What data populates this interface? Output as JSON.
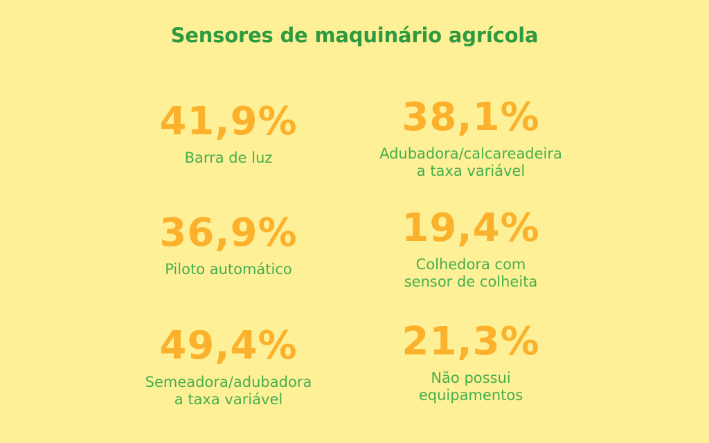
{
  "title": "Sensores de maquinário agrícola",
  "colors": {
    "background": "#FEF097",
    "title": "#2F9A3F",
    "value": "#FBB12C",
    "label": "#45AE4D"
  },
  "stats": [
    {
      "value": "41,9%",
      "label": "Barra de luz"
    },
    {
      "value": "38,1%",
      "label": "Adubadora/calcareadeira\na taxa variável"
    },
    {
      "value": "36,9%",
      "label": "Piloto automático"
    },
    {
      "value": "19,4%",
      "label": "Colhedora com\nsensor de colheita"
    },
    {
      "value": "49,4%",
      "label": "Semeadora/adubadora\na taxa variável"
    },
    {
      "value": "21,3%",
      "label": "Não possui\nequipamentos"
    }
  ],
  "chart_data": {
    "type": "table",
    "title": "Sensores de maquinário agrícola",
    "categories": [
      "Barra de luz",
      "Adubadora/calcareadeira a taxa variável",
      "Piloto automático",
      "Colhedora com sensor de colheita",
      "Semeadora/adubadora a taxa variável",
      "Não possui equipamentos"
    ],
    "values": [
      41.9,
      38.1,
      36.9,
      19.4,
      49.4,
      21.3
    ],
    "unit": "%",
    "layout": "2-column grid, 3 rows"
  }
}
